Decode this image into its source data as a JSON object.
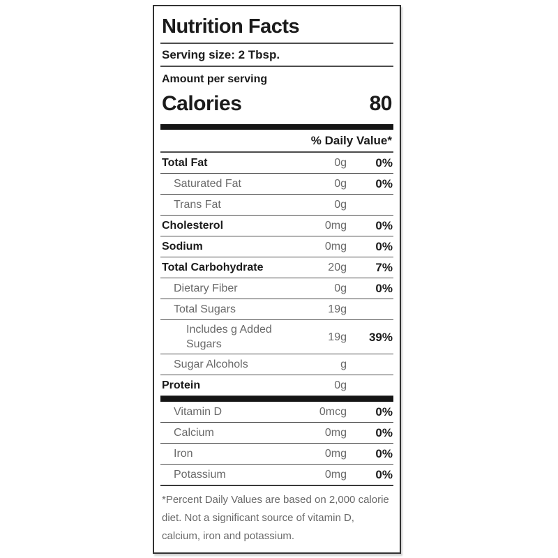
{
  "colors": {
    "background": "#ffffff",
    "text_primary": "#1b1b1b",
    "text_secondary": "#696969",
    "divider": "#4c4c4c",
    "thick_bar": "#151515",
    "border": "#333333"
  },
  "label": {
    "title": "Nutrition Facts",
    "serving_size": "Serving size: 2 Tbsp.",
    "amount_per_serving": "Amount per serving",
    "calories": {
      "label": "Calories",
      "value": "80"
    },
    "daily_value_header": "% Daily Value*",
    "nutrients": [
      {
        "name": "Total Fat",
        "amount": "0g",
        "dv": "0%",
        "bold": true,
        "indent": 0
      },
      {
        "name": "Saturated Fat",
        "amount": "0g",
        "dv": "0%",
        "bold": false,
        "indent": 1
      },
      {
        "name": "Trans Fat",
        "amount": "0g",
        "dv": "",
        "bold": false,
        "indent": 1
      },
      {
        "name": "Cholesterol",
        "amount": "0mg",
        "dv": "0%",
        "bold": true,
        "indent": 0
      },
      {
        "name": "Sodium",
        "amount": "0mg",
        "dv": "0%",
        "bold": true,
        "indent": 0
      },
      {
        "name": "Total Carbohydrate",
        "amount": "20g",
        "dv": "7%",
        "bold": true,
        "indent": 0
      },
      {
        "name": "Dietary Fiber",
        "amount": "0g",
        "dv": "0%",
        "bold": false,
        "indent": 1
      },
      {
        "name": "Total Sugars",
        "amount": "19g",
        "dv": "",
        "bold": false,
        "indent": 1
      },
      {
        "name": "Includes g Added Sugars",
        "amount": "19g",
        "dv": "39%",
        "bold": false,
        "indent": 2
      },
      {
        "name": "Sugar Alcohols",
        "amount": "g",
        "dv": "",
        "bold": false,
        "indent": 1
      },
      {
        "name": "Protein",
        "amount": "0g",
        "dv": "",
        "bold": true,
        "indent": 0
      }
    ],
    "vitamins": [
      {
        "name": "Vitamin D",
        "amount": "0mcg",
        "dv": "0%",
        "bold": false,
        "indent": 1
      },
      {
        "name": "Calcium",
        "amount": "0mg",
        "dv": "0%",
        "bold": false,
        "indent": 1
      },
      {
        "name": "Iron",
        "amount": "0mg",
        "dv": "0%",
        "bold": false,
        "indent": 1
      },
      {
        "name": "Potassium",
        "amount": "0mg",
        "dv": "0%",
        "bold": false,
        "indent": 1
      }
    ],
    "footnote": "*Percent Daily Values are based on 2,000 calorie diet. Not a significant source of vitamin D, calcium, iron and potassium."
  }
}
